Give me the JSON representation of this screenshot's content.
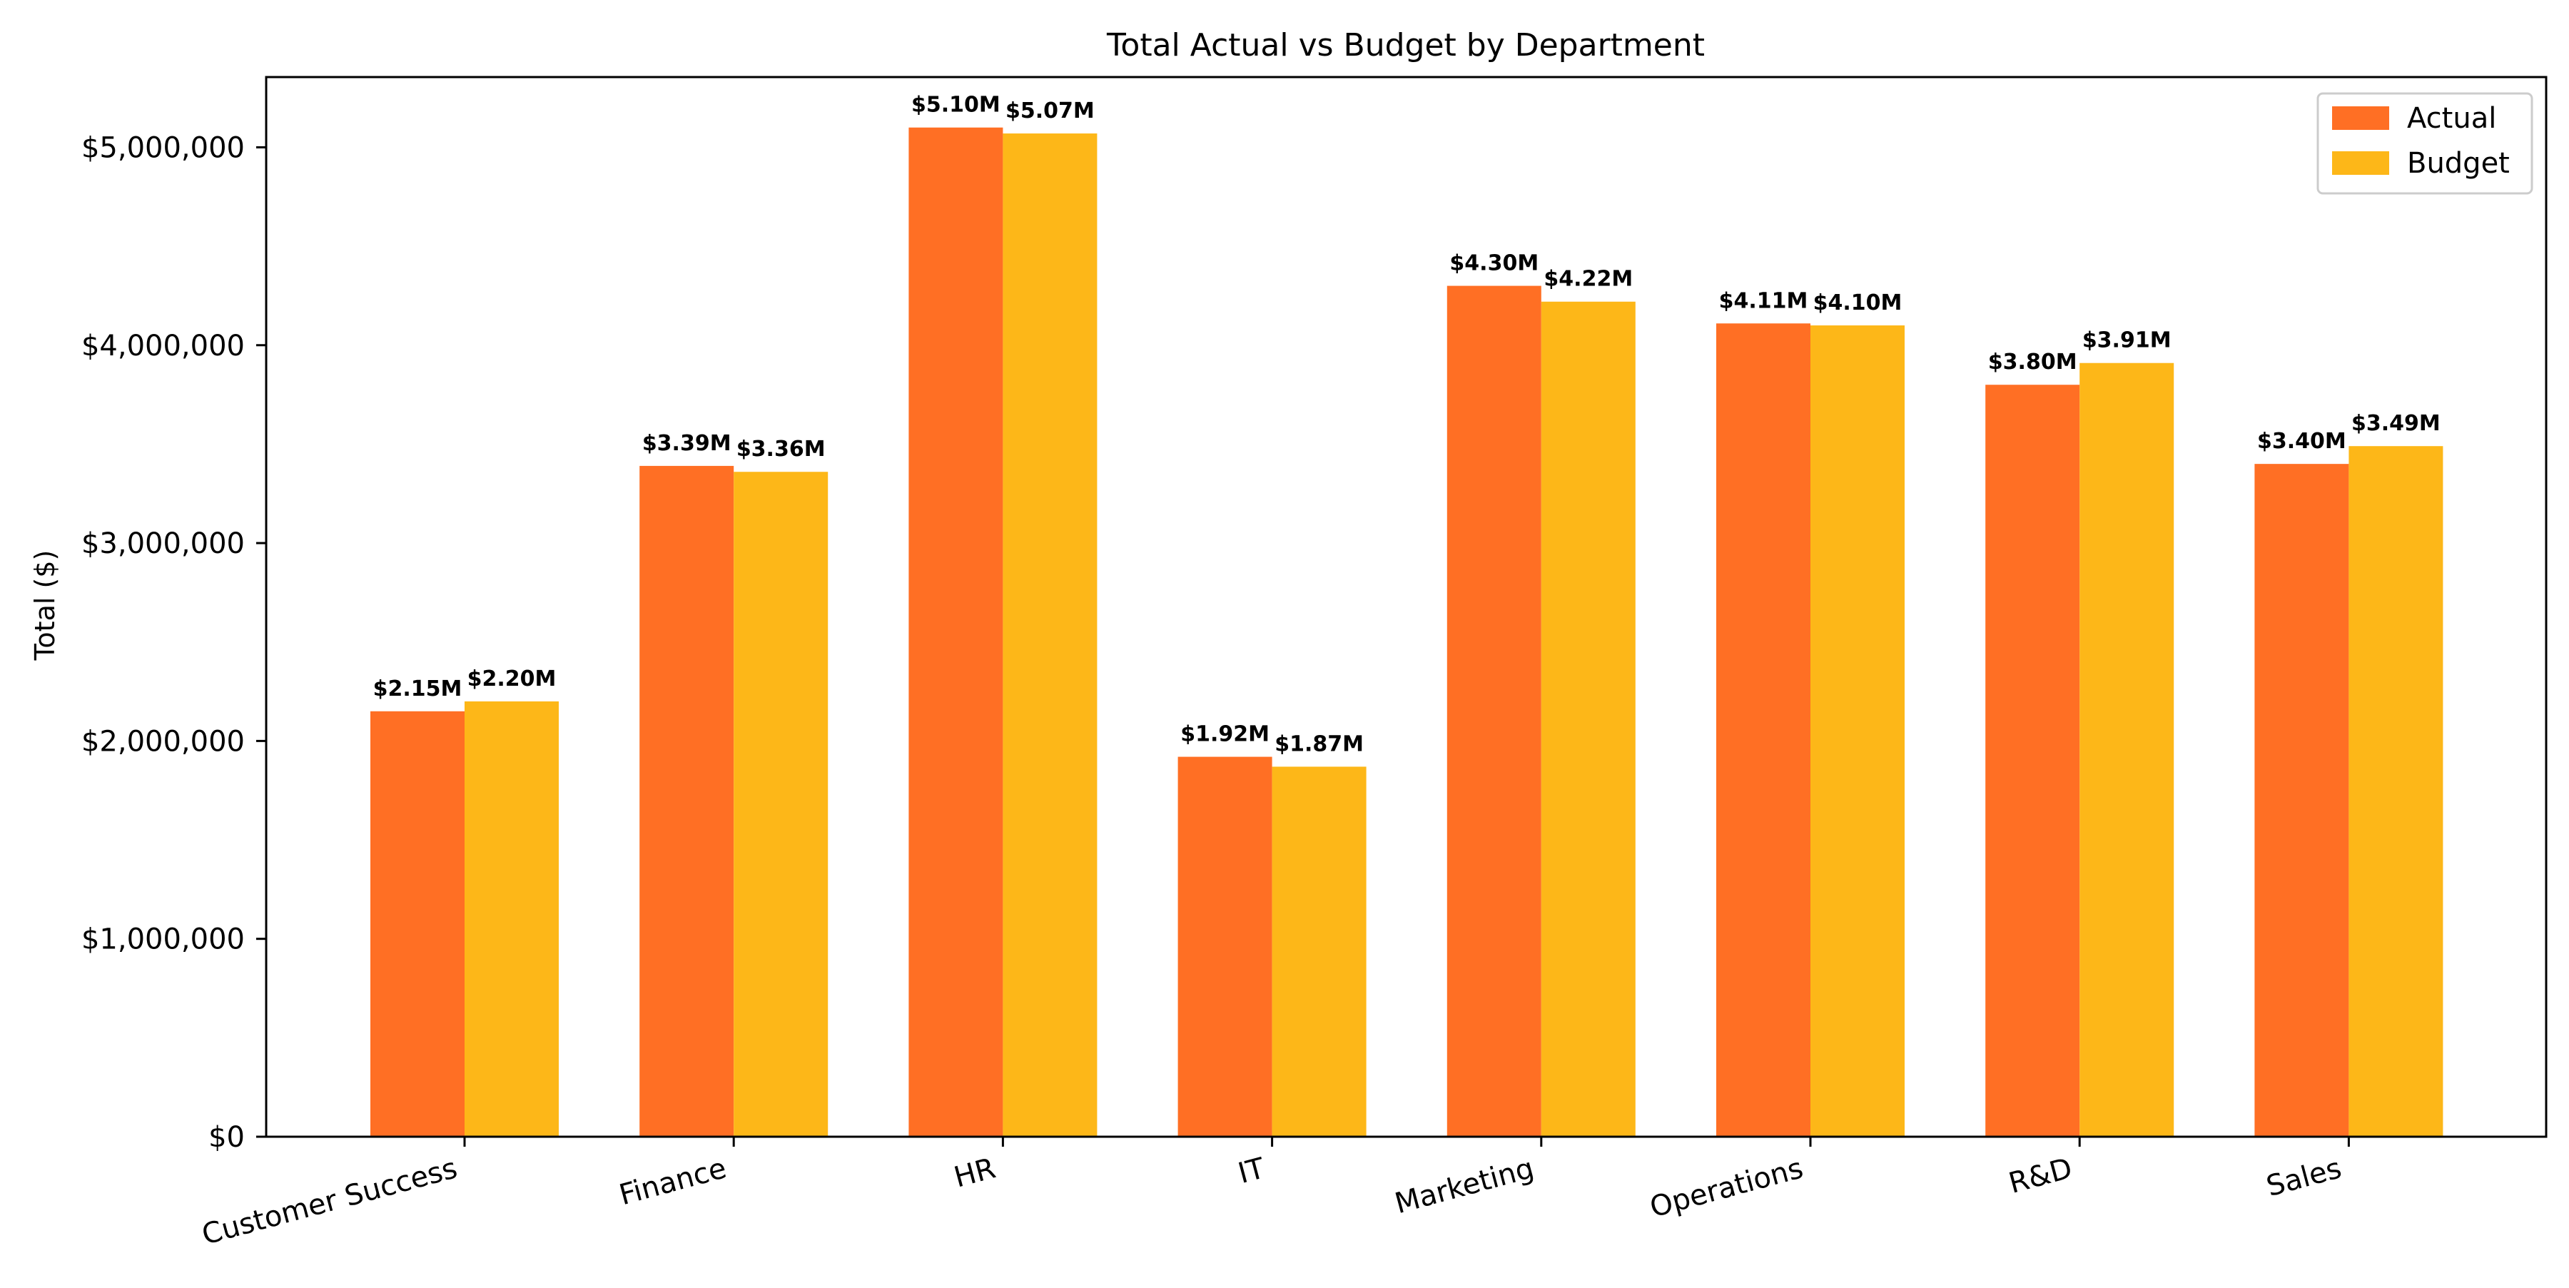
{
  "chart_data": {
    "type": "bar",
    "title": "Total Actual vs Budget by Department",
    "xlabel": "",
    "ylabel": "Total ($)",
    "categories": [
      "Customer Success",
      "Finance",
      "HR",
      "IT",
      "Marketing",
      "Operations",
      "R&D",
      "Sales"
    ],
    "series": [
      {
        "name": "Actual",
        "color": "#ff6f24",
        "values": [
          2150000,
          3390000,
          5100000,
          1920000,
          4300000,
          4110000,
          3800000,
          3400000
        ],
        "labels": [
          "$2.15M",
          "$3.39M",
          "$5.10M",
          "$1.92M",
          "$4.30M",
          "$4.11M",
          "$3.80M",
          "$3.40M"
        ]
      },
      {
        "name": "Budget",
        "color": "#fdb718",
        "values": [
          2200000,
          3360000,
          5070000,
          1870000,
          4220000,
          4100000,
          3910000,
          3490000
        ],
        "labels": [
          "$2.20M",
          "$3.36M",
          "$5.07M",
          "$1.87M",
          "$4.22M",
          "$4.10M",
          "$3.91M",
          "$3.49M"
        ]
      }
    ],
    "yticks": [
      0,
      1000000,
      2000000,
      3000000,
      4000000,
      5000000
    ],
    "ytick_labels": [
      "$0",
      "$1,000,000",
      "$2,000,000",
      "$3,000,000",
      "$4,000,000",
      "$5,000,000"
    ],
    "ylim": [
      0,
      5355000
    ],
    "grid": false,
    "legend_position": "top-right"
  }
}
